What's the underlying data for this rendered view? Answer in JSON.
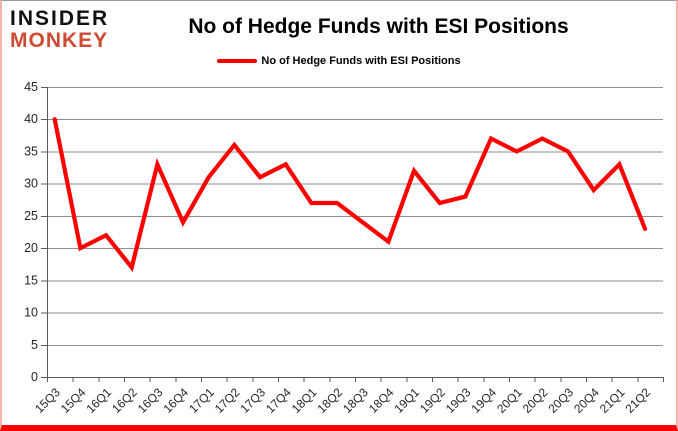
{
  "logo": {
    "line1": "INSIDER",
    "line2": "MONKEY",
    "line1_color": "#111111",
    "line2_color": "#cf4a33"
  },
  "title": "No of Hedge Funds with ESI Positions",
  "legend": {
    "label": "No of Hedge Funds with ESI Positions"
  },
  "chart_data": {
    "type": "line",
    "title": "No of Hedge Funds with ESI Positions",
    "categories": [
      "15Q3",
      "15Q4",
      "16Q1",
      "16Q2",
      "16Q3",
      "16Q4",
      "17Q1",
      "17Q2",
      "17Q3",
      "17Q4",
      "18Q1",
      "18Q2",
      "18Q3",
      "18Q4",
      "19Q1",
      "19Q2",
      "19Q3",
      "19Q4",
      "20Q1",
      "20Q2",
      "20Q3",
      "20Q4",
      "21Q1",
      "21Q2"
    ],
    "series": [
      {
        "name": "No of Hedge Funds with ESI Positions",
        "color": "#ff0000",
        "values": [
          40,
          20,
          22,
          17,
          33,
          24,
          31,
          36,
          31,
          33,
          27,
          27,
          24,
          21,
          32,
          27,
          28,
          37,
          35,
          37,
          35,
          29,
          33,
          23
        ]
      }
    ],
    "xlabel": "",
    "ylabel": "",
    "ylim": [
      0,
      45
    ],
    "ytick_step": 5,
    "grid": true,
    "grid_color": "#8f8f8f",
    "axis_color": "#595959",
    "tick_label_color": "#262626",
    "legend_position": "top-center"
  }
}
